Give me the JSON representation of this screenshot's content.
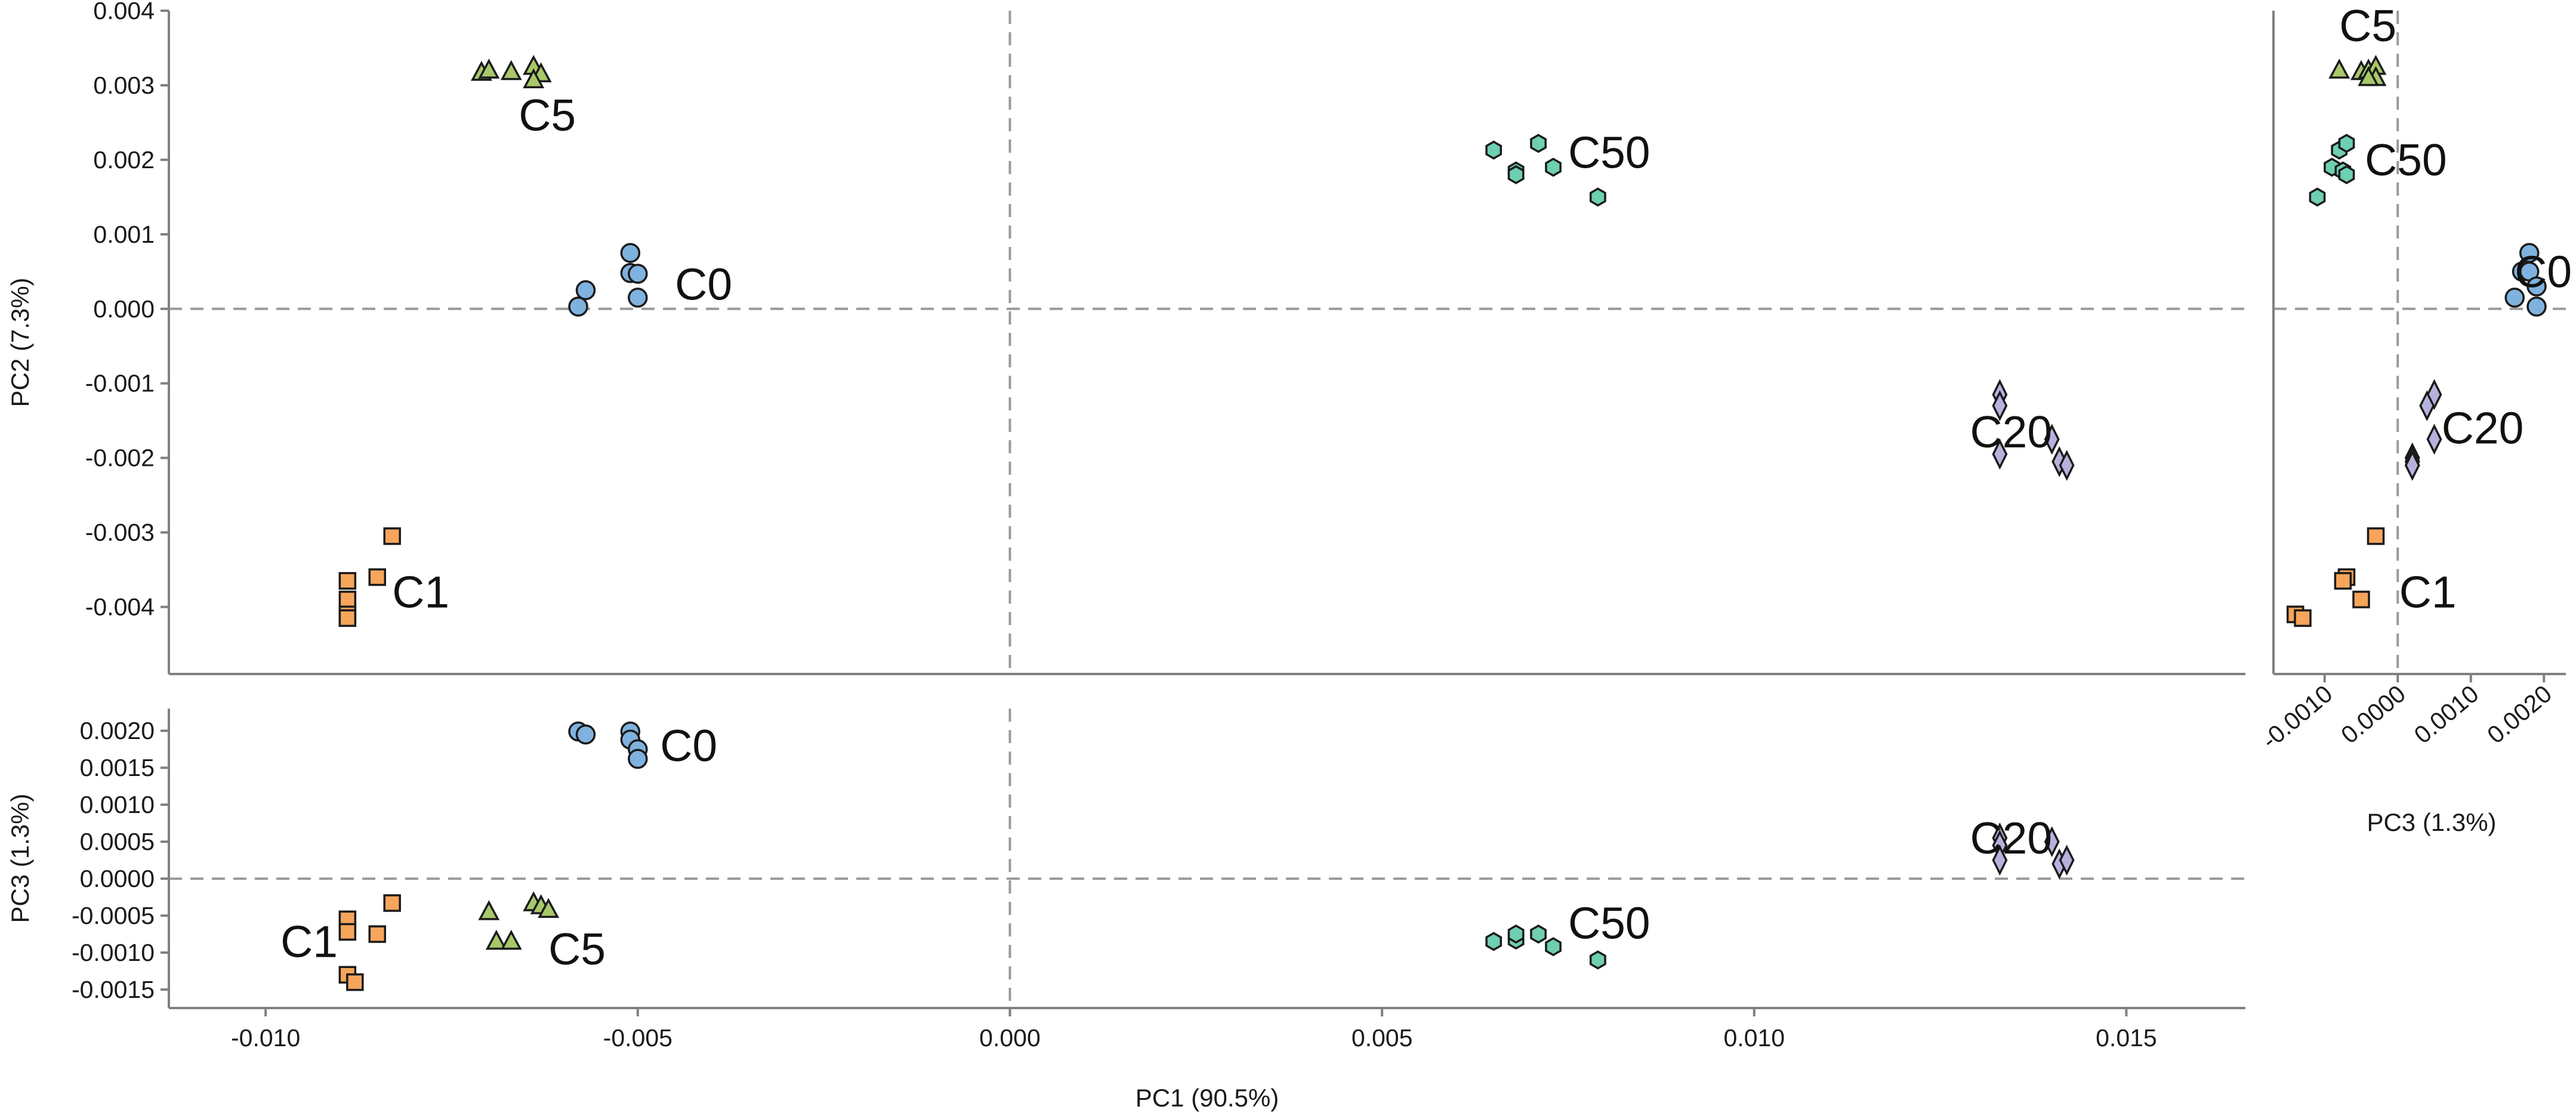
{
  "chart_data": [
    {
      "id": "pc1_pc2",
      "type": "scatter",
      "xlabel": "",
      "ylabel": "PC2 (7.3%)",
      "xlim": [
        -0.0113,
        0.0166
      ],
      "ylim": [
        -0.0049,
        0.004
      ],
      "xticks": [],
      "yticks": [
        "0.004",
        "0.003",
        "0.002",
        "0.001",
        "0.000",
        "-0.001",
        "-0.002",
        "-0.003",
        "-0.004"
      ],
      "reference_lines": {
        "x": 0.0,
        "y": 0.0
      },
      "series": [
        {
          "name": "C0",
          "color": "#7fb2df",
          "marker": "circle",
          "label_at": [
            -0.0045,
            0.00033
          ],
          "points": [
            [
              -0.0058,
              3e-05
            ],
            [
              -0.0057,
              0.00025
            ],
            [
              -0.0051,
              0.00075
            ],
            [
              -0.0051,
              0.00048
            ],
            [
              -0.005,
              0.00047
            ],
            [
              -0.005,
              0.00015
            ]
          ]
        },
        {
          "name": "C1",
          "color": "#f6a55b",
          "marker": "square",
          "label_at": [
            -0.0083,
            -0.0038
          ],
          "points": [
            [
              -0.0083,
              -0.00305
            ],
            [
              -0.0085,
              -0.0036
            ],
            [
              -0.0089,
              -0.00365
            ],
            [
              -0.0089,
              -0.0039
            ],
            [
              -0.0089,
              -0.0041
            ],
            [
              -0.0089,
              -0.00415
            ]
          ]
        },
        {
          "name": "C5",
          "color": "#a8c86a",
          "marker": "triangle",
          "label_at": [
            -0.0066,
            0.0026
          ],
          "points": [
            [
              -0.0071,
              0.00317
            ],
            [
              -0.007,
              0.0032
            ],
            [
              -0.0067,
              0.00318
            ],
            [
              -0.0064,
              0.00325
            ],
            [
              -0.0063,
              0.00315
            ],
            [
              -0.0064,
              0.00307
            ]
          ]
        },
        {
          "name": "C20",
          "color": "#b5b3dd",
          "marker": "diamond",
          "label_at": [
            0.0129,
            -0.00165
          ],
          "points": [
            [
              0.0133,
              -0.00115
            ],
            [
              0.0133,
              -0.0013
            ],
            [
              0.0133,
              -0.00195
            ],
            [
              0.014,
              -0.00175
            ],
            [
              0.0141,
              -0.00205
            ],
            [
              0.0142,
              -0.0021
            ]
          ]
        },
        {
          "name": "C50",
          "color": "#6ecfb2",
          "marker": "hexagon",
          "label_at": [
            0.0075,
            0.0021
          ],
          "points": [
            [
              0.0065,
              0.00213
            ],
            [
              0.0068,
              0.00185
            ],
            [
              0.0068,
              0.0018
            ],
            [
              0.0071,
              0.00222
            ],
            [
              0.0073,
              0.0019
            ],
            [
              0.0079,
              0.0015
            ]
          ]
        }
      ]
    },
    {
      "id": "pc1_pc3",
      "type": "scatter",
      "xlabel": "PC1 (90.5%)",
      "ylabel": "PC3 (1.3%)",
      "xlim": [
        -0.0113,
        0.0166
      ],
      "ylim": [
        -0.00175,
        0.0023
      ],
      "xticks": [
        "-0.010",
        "-0.005",
        "0.000",
        "0.005",
        "0.010",
        "0.015"
      ],
      "yticks": [
        "0.0020",
        "0.0015",
        "0.0010",
        "0.0005",
        "0.0000",
        "-0.0005",
        "-0.0010",
        "-0.0015"
      ],
      "reference_lines": {
        "x": 0.0,
        "y": 0.0
      },
      "series": [
        {
          "name": "C0",
          "color": "#7fb2df",
          "marker": "circle",
          "label_at": [
            -0.0047,
            0.0018
          ],
          "points": [
            [
              -0.0058,
              0.00199
            ],
            [
              -0.0057,
              0.00195
            ],
            [
              -0.0051,
              0.00199
            ],
            [
              -0.0051,
              0.00188
            ],
            [
              -0.005,
              0.00175
            ],
            [
              -0.005,
              0.00162
            ]
          ]
        },
        {
          "name": "C1",
          "color": "#f6a55b",
          "marker": "square",
          "label_at": [
            -0.0098,
            -0.00085
          ],
          "points": [
            [
              -0.0083,
              -0.00033
            ],
            [
              -0.0085,
              -0.00075
            ],
            [
              -0.0089,
              -0.00055
            ],
            [
              -0.0089,
              -0.00072
            ],
            [
              -0.0089,
              -0.0013
            ],
            [
              -0.0088,
              -0.0014
            ]
          ]
        },
        {
          "name": "C5",
          "color": "#a8c86a",
          "marker": "triangle",
          "label_at": [
            -0.0062,
            -0.00095
          ],
          "points": [
            [
              -0.007,
              -0.00045
            ],
            [
              -0.0069,
              -0.00085
            ],
            [
              -0.0067,
              -0.00085
            ],
            [
              -0.0064,
              -0.00033
            ],
            [
              -0.0063,
              -0.00037
            ],
            [
              -0.0062,
              -0.00042
            ]
          ]
        },
        {
          "name": "C20",
          "color": "#b5b3dd",
          "marker": "diamond",
          "label_at": [
            0.0129,
            0.00055
          ],
          "points": [
            [
              0.0133,
              0.00055
            ],
            [
              0.0133,
              0.00045
            ],
            [
              0.0133,
              0.00025
            ],
            [
              0.014,
              0.0005
            ],
            [
              0.0141,
              0.0002
            ],
            [
              0.0142,
              0.00025
            ]
          ]
        },
        {
          "name": "C50",
          "color": "#6ecfb2",
          "marker": "hexagon",
          "label_at": [
            0.0075,
            -0.0006
          ],
          "points": [
            [
              0.0065,
              -0.00085
            ],
            [
              0.0068,
              -0.00083
            ],
            [
              0.0068,
              -0.00075
            ],
            [
              0.0071,
              -0.00075
            ],
            [
              0.0073,
              -0.00092
            ],
            [
              0.0079,
              -0.0011
            ]
          ]
        }
      ]
    },
    {
      "id": "pc3_pc2",
      "type": "scatter",
      "xlabel": "PC3 (1.3%)",
      "ylabel": "",
      "xlim": [
        -0.0017,
        0.0023
      ],
      "ylim": [
        -0.0049,
        0.004
      ],
      "xticks": [
        "-0.0010",
        "0.0000",
        "0.0010",
        "0.0020"
      ],
      "yticks": [],
      "reference_lines": {
        "x": 0.0,
        "y": 0.0
      },
      "series": [
        {
          "name": "C0",
          "color": "#7fb2df",
          "marker": "circle",
          "label_at": [
            0.0016,
            0.0005
          ],
          "points": [
            [
              0.0016,
              0.00015
            ],
            [
              0.0017,
              0.0005
            ],
            [
              0.0018,
              0.00075
            ],
            [
              0.0018,
              0.0005
            ],
            [
              0.0019,
              0.0003
            ],
            [
              0.0019,
              3e-05
            ]
          ]
        },
        {
          "name": "C1",
          "color": "#f6a55b",
          "marker": "square",
          "label_at": [
            2e-05,
            -0.0038
          ],
          "points": [
            [
              -0.0003,
              -0.00305
            ],
            [
              -0.0007,
              -0.0036
            ],
            [
              -0.0005,
              -0.0039
            ],
            [
              -0.0014,
              -0.0041
            ],
            [
              -0.0013,
              -0.00415
            ],
            [
              -0.00075,
              -0.00365
            ]
          ]
        },
        {
          "name": "C5",
          "color": "#a8c86a",
          "marker": "triangle",
          "label_at": [
            -0.0008,
            0.0038
          ],
          "points": [
            [
              -0.0008,
              0.0032
            ],
            [
              -0.0005,
              0.00318
            ],
            [
              -0.0004,
              0.0032
            ],
            [
              -0.0003,
              0.00325
            ],
            [
              -0.0003,
              0.0031
            ],
            [
              -0.0004,
              0.0031
            ]
          ]
        },
        {
          "name": "C20",
          "color": "#b5b3dd",
          "marker": "diamond",
          "label_at": [
            0.0006,
            -0.0016
          ],
          "points": [
            [
              0.0005,
              -0.00115
            ],
            [
              0.0004,
              -0.0013
            ],
            [
              0.0002,
              -0.002
            ],
            [
              0.0002,
              -0.00205
            ],
            [
              0.0002,
              -0.0021
            ],
            [
              0.0005,
              -0.00175
            ]
          ]
        },
        {
          "name": "C50",
          "color": "#6ecfb2",
          "marker": "hexagon",
          "label_at": [
            -0.00045,
            0.002
          ],
          "points": [
            [
              -0.0008,
              0.00213
            ],
            [
              -0.0007,
              0.00222
            ],
            [
              -0.0009,
              0.0019
            ],
            [
              -0.00075,
              0.00185
            ],
            [
              -0.0007,
              0.0018
            ],
            [
              -0.0011,
              0.0015
            ]
          ]
        }
      ]
    }
  ]
}
